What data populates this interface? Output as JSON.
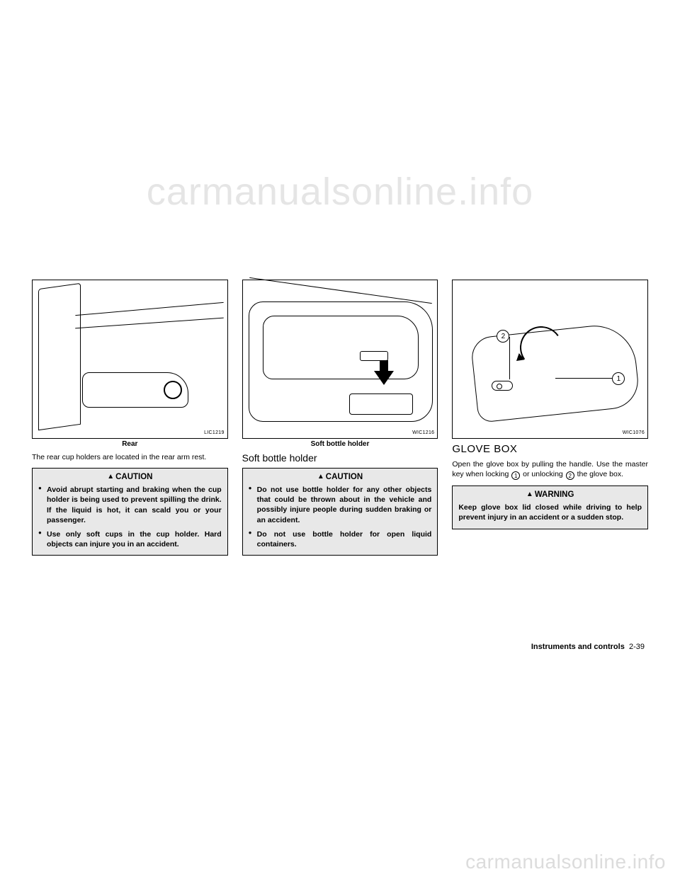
{
  "watermarks": {
    "top": "carmanualsonline.info",
    "bottom": "carmanualsonline.info"
  },
  "col1": {
    "fig_id": "LIC1219",
    "fig_caption": "Rear",
    "body": "The rear cup holders are located in the rear arm rest.",
    "callout_title": "CAUTION",
    "bullets": [
      "Avoid abrupt starting and braking when the cup holder is being used to prevent spilling the drink. If the liquid is hot, it can scald you or your passenger.",
      "Use only soft cups in the cup holder. Hard objects can injure you in an accident."
    ]
  },
  "col2": {
    "fig_id": "WIC1216",
    "fig_caption": "Soft bottle holder",
    "subheading": "Soft bottle holder",
    "callout_title": "CAUTION",
    "bullets": [
      "Do not use bottle holder for any other objects that could be thrown about in the vehicle and possibly injure people during sudden braking or an accident.",
      "Do not use bottle holder for open liquid containers."
    ]
  },
  "col3": {
    "fig_id": "WIC1076",
    "heading": "GLOVE BOX",
    "body_pre": "Open the glove box by pulling the handle. Use the master key when locking ",
    "circ1": "1",
    "body_mid": " or unlocking ",
    "circ2": "2",
    "body_post": " the glove box.",
    "callout_title": "WARNING",
    "callout_text": "Keep glove box lid closed while driving to help prevent injury in an accident or a sudden stop."
  },
  "footer": {
    "section": "Instruments and controls",
    "page": "2-39"
  }
}
